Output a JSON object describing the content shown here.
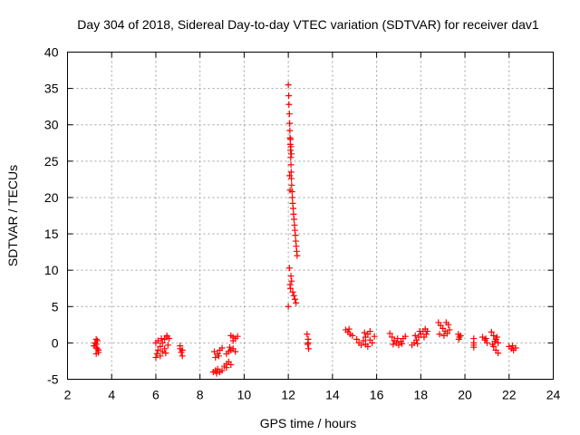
{
  "chart_data": {
    "type": "scatter",
    "title": "Day 304 of 2018, Sidereal Day-to-day VTEC variation (SDTVAR) for receiver dav1",
    "xlabel": "GPS time / hours",
    "ylabel": "SDTVAR / TECUs",
    "xlim": [
      2,
      24
    ],
    "ylim": [
      -5,
      40
    ],
    "x_ticks": [
      2,
      4,
      6,
      8,
      10,
      12,
      14,
      16,
      18,
      20,
      22,
      24
    ],
    "y_ticks": [
      -5,
      0,
      5,
      10,
      15,
      20,
      25,
      30,
      35,
      40
    ],
    "x_tick_labels": [
      "2",
      "4",
      "6",
      "8",
      "10",
      "12",
      "14",
      "16",
      "18",
      "20",
      "22",
      "24"
    ],
    "y_tick_labels": [
      "-5",
      "0",
      "5",
      "10",
      "15",
      "20",
      "25",
      "30",
      "35",
      "40"
    ],
    "grid": true,
    "marker": "+",
    "marker_color": "#ff0000",
    "series": [
      {
        "name": "SDTVAR",
        "points": [
          [
            3.3,
            0.5
          ],
          [
            3.3,
            -0.2
          ],
          [
            3.35,
            -0.8
          ],
          [
            3.4,
            -1.3
          ],
          [
            3.25,
            0.0
          ],
          [
            3.3,
            -0.6
          ],
          [
            3.35,
            0.3
          ],
          [
            3.4,
            -1.0
          ],
          [
            3.3,
            -1.5
          ],
          [
            3.2,
            -0.4
          ],
          [
            6.0,
            -2.0
          ],
          [
            6.05,
            -1.5
          ],
          [
            6.1,
            -1.0
          ],
          [
            6.2,
            -0.5
          ],
          [
            6.3,
            0.0
          ],
          [
            6.4,
            0.5
          ],
          [
            6.5,
            1.0
          ],
          [
            6.0,
            0.0
          ],
          [
            6.1,
            0.3
          ],
          [
            6.2,
            -1.8
          ],
          [
            6.3,
            -1.2
          ],
          [
            6.4,
            -0.8
          ],
          [
            6.5,
            0.8
          ],
          [
            6.6,
            0.6
          ],
          [
            6.45,
            -1.4
          ],
          [
            6.55,
            -0.3
          ],
          [
            6.25,
            0.6
          ],
          [
            7.1,
            -0.8
          ],
          [
            7.15,
            -1.3
          ],
          [
            7.2,
            -1.8
          ],
          [
            7.1,
            -0.4
          ],
          [
            7.2,
            -1.0
          ],
          [
            8.6,
            -4.0
          ],
          [
            8.7,
            -3.8
          ],
          [
            8.8,
            -3.6
          ],
          [
            8.9,
            -4.0
          ],
          [
            9.0,
            -3.8
          ],
          [
            8.75,
            -4.2
          ],
          [
            8.7,
            -2.0
          ],
          [
            8.8,
            -1.5
          ],
          [
            8.9,
            -1.0
          ],
          [
            9.0,
            -0.7
          ],
          [
            8.65,
            -1.2
          ],
          [
            8.85,
            -1.8
          ],
          [
            9.1,
            -3.2
          ],
          [
            9.2,
            -2.9
          ],
          [
            9.3,
            -2.6
          ],
          [
            9.4,
            -3.0
          ],
          [
            9.2,
            -3.4
          ],
          [
            9.2,
            -1.5
          ],
          [
            9.3,
            -1.2
          ],
          [
            9.4,
            -1.0
          ],
          [
            9.5,
            -0.8
          ],
          [
            9.6,
            -1.2
          ],
          [
            9.35,
            -0.6
          ],
          [
            9.4,
            1.0
          ],
          [
            9.5,
            0.8
          ],
          [
            9.6,
            0.6
          ],
          [
            9.7,
            0.9
          ],
          [
            9.5,
            0.3
          ],
          [
            12.0,
            5.0
          ],
          [
            12.05,
            10.3
          ],
          [
            12.08,
            8.0
          ],
          [
            12.1,
            7.5
          ],
          [
            12.2,
            7.0
          ],
          [
            12.25,
            6.5
          ],
          [
            12.3,
            6.0
          ],
          [
            12.35,
            5.5
          ],
          [
            12.15,
            8.5
          ],
          [
            12.12,
            9.2
          ],
          [
            12.0,
            35.5
          ],
          [
            12.02,
            34.0
          ],
          [
            12.03,
            32.8
          ],
          [
            12.05,
            31.5
          ],
          [
            12.06,
            30.2
          ],
          [
            12.07,
            29.2
          ],
          [
            12.08,
            28.2
          ],
          [
            12.09,
            27.3
          ],
          [
            12.1,
            26.5
          ],
          [
            12.11,
            25.5
          ],
          [
            12.12,
            24.5
          ],
          [
            12.13,
            23.5
          ],
          [
            12.14,
            22.6
          ],
          [
            12.15,
            21.7
          ],
          [
            12.17,
            20.8
          ],
          [
            12.18,
            20.0
          ],
          [
            12.2,
            19.2
          ],
          [
            12.22,
            18.5
          ],
          [
            12.24,
            17.7
          ],
          [
            12.26,
            17.0
          ],
          [
            12.28,
            16.2
          ],
          [
            12.3,
            15.5
          ],
          [
            12.32,
            14.8
          ],
          [
            12.34,
            14.0
          ],
          [
            12.36,
            13.3
          ],
          [
            12.38,
            12.6
          ],
          [
            12.4,
            12.0
          ],
          [
            12.1,
            28.0
          ],
          [
            12.12,
            27.0
          ],
          [
            12.14,
            26.0
          ],
          [
            12.06,
            23.0
          ],
          [
            12.08,
            21.0
          ],
          [
            12.85,
            1.2
          ],
          [
            12.9,
            0.5
          ],
          [
            12.88,
            -0.2
          ],
          [
            12.92,
            -0.8
          ],
          [
            12.9,
            0.0
          ],
          [
            14.6,
            1.8
          ],
          [
            14.7,
            1.5
          ],
          [
            14.8,
            1.2
          ],
          [
            14.9,
            1.0
          ],
          [
            14.75,
            1.9
          ],
          [
            15.1,
            0.5
          ],
          [
            15.2,
            0.0
          ],
          [
            15.3,
            -0.3
          ],
          [
            15.4,
            0.3
          ],
          [
            15.5,
            0.8
          ],
          [
            15.6,
            1.2
          ],
          [
            15.7,
            1.6
          ],
          [
            15.8,
            0.0
          ],
          [
            15.6,
            -0.5
          ],
          [
            15.7,
            0.4
          ],
          [
            15.5,
            -0.2
          ],
          [
            15.9,
            0.9
          ],
          [
            15.45,
            1.4
          ],
          [
            16.6,
            1.3
          ],
          [
            16.7,
            0.8
          ],
          [
            16.8,
            0.3
          ],
          [
            16.9,
            0.0
          ],
          [
            17.0,
            -0.3
          ],
          [
            17.1,
            0.2
          ],
          [
            17.2,
            0.6
          ],
          [
            17.3,
            0.9
          ],
          [
            16.75,
            -0.2
          ],
          [
            16.95,
            0.6
          ],
          [
            17.15,
            -0.1
          ],
          [
            17.6,
            -0.3
          ],
          [
            17.7,
            0.0
          ],
          [
            17.8,
            0.4
          ],
          [
            17.9,
            0.8
          ],
          [
            18.0,
            1.2
          ],
          [
            18.1,
            1.6
          ],
          [
            18.2,
            1.9
          ],
          [
            18.3,
            1.6
          ],
          [
            17.75,
            1.0
          ],
          [
            17.95,
            1.6
          ],
          [
            18.15,
            0.8
          ],
          [
            18.25,
            1.2
          ],
          [
            17.85,
            -0.1
          ],
          [
            18.8,
            2.8
          ],
          [
            18.9,
            2.4
          ],
          [
            19.0,
            2.0
          ],
          [
            19.1,
            1.6
          ],
          [
            19.2,
            1.3
          ],
          [
            19.3,
            1.8
          ],
          [
            18.85,
            1.2
          ],
          [
            19.05,
            1.0
          ],
          [
            19.25,
            2.5
          ],
          [
            19.15,
            2.8
          ],
          [
            19.7,
            1.2
          ],
          [
            19.75,
            0.8
          ],
          [
            19.8,
            1.0
          ],
          [
            19.72,
            0.5
          ],
          [
            20.4,
            0.6
          ],
          [
            20.4,
            0.0
          ],
          [
            20.4,
            -0.3
          ],
          [
            20.4,
            -0.6
          ],
          [
            20.8,
            0.8
          ],
          [
            20.9,
            0.4
          ],
          [
            21.0,
            0.0
          ],
          [
            20.95,
            0.6
          ],
          [
            21.2,
            1.5
          ],
          [
            21.3,
            1.0
          ],
          [
            21.4,
            0.5
          ],
          [
            21.5,
            0.0
          ],
          [
            21.3,
            -0.5
          ],
          [
            21.4,
            -1.0
          ],
          [
            21.5,
            -1.4
          ],
          [
            21.25,
            -0.2
          ],
          [
            21.45,
            0.8
          ],
          [
            21.35,
            0.2
          ],
          [
            22.0,
            -0.5
          ],
          [
            22.1,
            -0.8
          ],
          [
            22.2,
            -1.0
          ],
          [
            22.3,
            -0.7
          ],
          [
            22.15,
            -0.4
          ]
        ]
      }
    ]
  }
}
